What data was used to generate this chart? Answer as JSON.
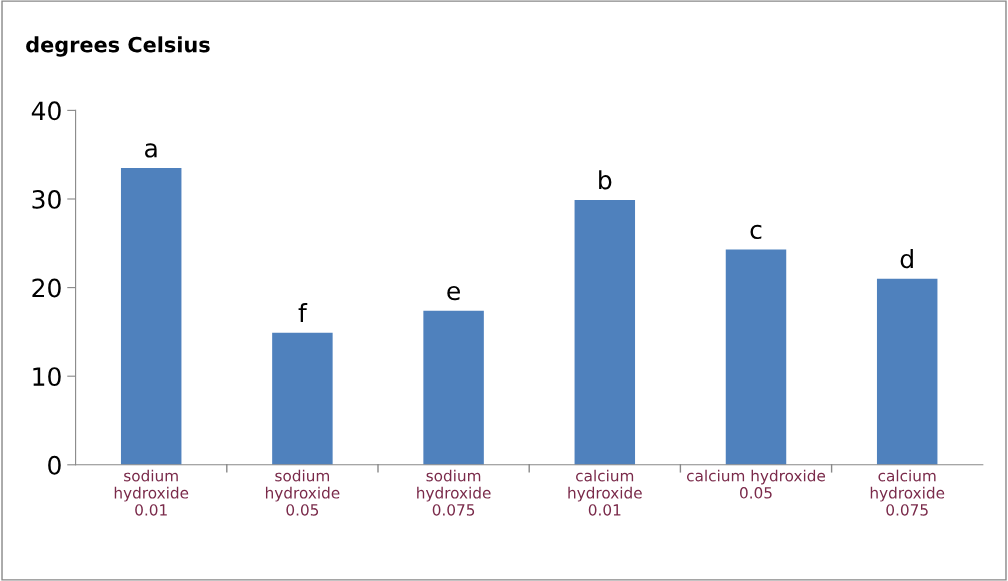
{
  "chart_data": {
    "type": "bar",
    "ylabel": "degrees Celsius",
    "categories": [
      "sodium\nhydroxide\n0.01",
      "sodium\nhydroxide\n0.05",
      "sodium\nhydroxide\n0.075",
      "calcium\nhydroxide\n0.01",
      "calcium hydroxide\n0.05",
      "calcium\nhydroxide\n0.075"
    ],
    "values": [
      33.5,
      14.9,
      17.4,
      29.9,
      24.3,
      21.0
    ],
    "color": "#4f81bd",
    "ylim": [
      0,
      40
    ],
    "yticks": [
      0,
      10,
      20,
      30,
      40
    ],
    "grid": false,
    "legend": false,
    "annotations": [
      {
        "text": "a",
        "x": "sodium\nhydroxide\n0.01",
        "y": 33.5
      },
      {
        "text": "f",
        "x": "sodium\nhydroxide\n0.05",
        "y": 14.9
      },
      {
        "text": "e",
        "x": "sodium\nhydroxide\n0.075",
        "y": 17.4
      },
      {
        "text": "b",
        "x": "calcium\nhydroxide\n0.01",
        "y": 29.9
      },
      {
        "text": "c",
        "x": "calcium hydroxide\n0.05",
        "y": 24.3
      },
      {
        "text": "d",
        "x": "calcium\nhydroxide\n0.075",
        "y": 21.0
      }
    ]
  }
}
